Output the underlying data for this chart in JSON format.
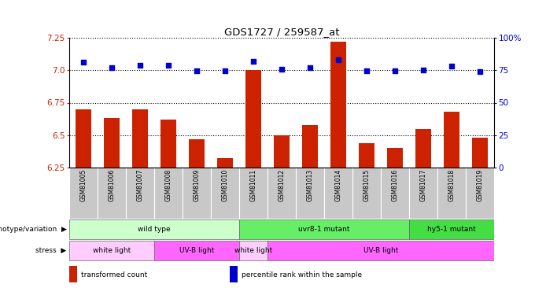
{
  "title": "GDS1727 / 259587_at",
  "samples": [
    "GSM81005",
    "GSM81006",
    "GSM81007",
    "GSM81008",
    "GSM81009",
    "GSM81010",
    "GSM81011",
    "GSM81012",
    "GSM81013",
    "GSM81014",
    "GSM81015",
    "GSM81016",
    "GSM81017",
    "GSM81018",
    "GSM81019"
  ],
  "bar_values": [
    6.7,
    6.63,
    6.7,
    6.62,
    6.47,
    6.32,
    7.0,
    6.5,
    6.58,
    7.22,
    6.44,
    6.4,
    6.55,
    6.68,
    6.48
  ],
  "dot_values": [
    7.06,
    7.02,
    7.04,
    7.04,
    6.995,
    6.995,
    7.07,
    7.01,
    7.02,
    7.08,
    6.995,
    6.995,
    7.0,
    7.03,
    6.99
  ],
  "ylim_left": [
    6.25,
    7.25
  ],
  "yticks_left": [
    6.25,
    6.5,
    6.75,
    7.0,
    7.25
  ],
  "yticks_right": [
    0,
    25,
    50,
    75,
    100
  ],
  "ytick_right_labels": [
    "0",
    "25",
    "50",
    "75",
    "100%"
  ],
  "bar_color": "#cc2200",
  "dot_color": "#0000cc",
  "bar_bottom": 6.25,
  "genotype_groups": [
    {
      "label": "wild type",
      "start": 0,
      "end": 6,
      "color": "#ccffcc"
    },
    {
      "label": "uvr8-1 mutant",
      "start": 6,
      "end": 12,
      "color": "#66ee66"
    },
    {
      "label": "hy5-1 mutant",
      "start": 12,
      "end": 15,
      "color": "#44dd44"
    }
  ],
  "stress_groups": [
    {
      "label": "white light",
      "start": 0,
      "end": 3,
      "color": "#ffccff"
    },
    {
      "label": "UV-B light",
      "start": 3,
      "end": 6,
      "color": "#ff66ff"
    },
    {
      "label": "white light",
      "start": 6,
      "end": 7,
      "color": "#ffccff"
    },
    {
      "label": "UV-B light",
      "start": 7,
      "end": 15,
      "color": "#ff66ff"
    }
  ],
  "genotype_label": "genotype/variation",
  "stress_label": "stress",
  "legend_items": [
    {
      "color": "#cc2200",
      "label": "transformed count"
    },
    {
      "color": "#0000cc",
      "label": "percentile rank within the sample"
    }
  ],
  "fig_width": 6.8,
  "fig_height": 3.75,
  "dpi": 100
}
